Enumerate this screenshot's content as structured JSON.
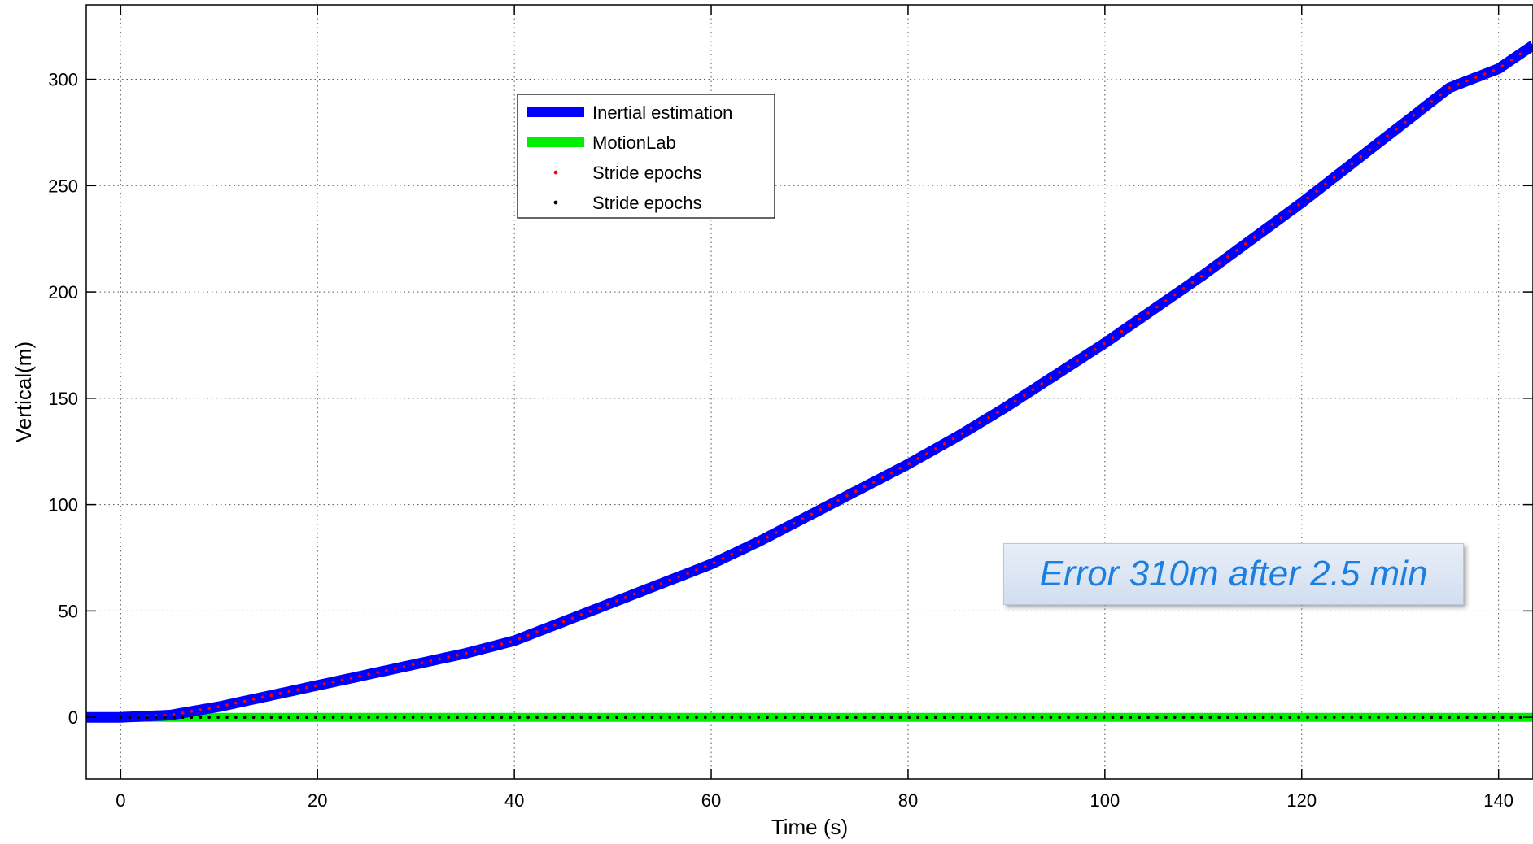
{
  "chart_data": {
    "type": "line",
    "title": "",
    "xlabel": "Time (s)",
    "ylabel": "Vertical(m)",
    "xlim": [
      -3.5,
      143.5
    ],
    "ylim": [
      -29,
      335
    ],
    "xticks": [
      0,
      20,
      40,
      60,
      80,
      100,
      120,
      140
    ],
    "yticks": [
      0,
      50,
      100,
      150,
      200,
      250,
      300
    ],
    "grid": true,
    "legend_position": "top-center",
    "series": [
      {
        "name": "Inertial estimation",
        "style": "thick-line",
        "color": "#0000ff",
        "x": [
          -3.5,
          0,
          5,
          10,
          15,
          20,
          25,
          30,
          35,
          40,
          45,
          50,
          55,
          60,
          65,
          70,
          75,
          80,
          85,
          90,
          95,
          100,
          105,
          110,
          115,
          120,
          125,
          130,
          135,
          140,
          143.5
        ],
        "y": [
          0,
          0,
          1,
          5,
          10,
          15,
          20,
          25,
          30,
          36,
          45,
          54,
          63,
          72,
          83,
          95,
          107,
          119,
          132,
          146,
          161,
          176,
          192,
          208,
          225,
          242,
          260,
          278,
          296,
          305,
          316
        ]
      },
      {
        "name": "MotionLab",
        "style": "thick-line",
        "color": "#00ee00",
        "x": [
          -3.5,
          143.5
        ],
        "y": [
          0,
          0
        ]
      },
      {
        "name": "Stride epochs",
        "style": "markers",
        "color": "#ff0000",
        "marker_on": "Inertial estimation",
        "x_start": 0,
        "x_end": 143,
        "x_step": 0.9
      },
      {
        "name": "Stride epochs",
        "style": "markers",
        "color": "#000000",
        "marker_on": "MotionLab",
        "x_start": 0,
        "x_end": 143,
        "x_step": 0.9
      }
    ],
    "annotation": {
      "text": "Error 310m after 2.5 min",
      "color": "#1a7fe0"
    }
  }
}
